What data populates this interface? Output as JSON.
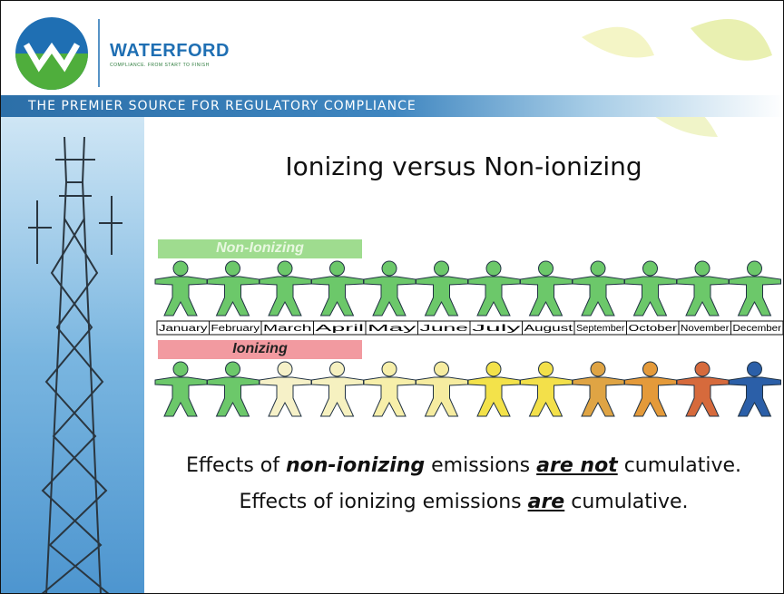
{
  "header": {
    "brand": "WATERFORD",
    "tagline": "COMPLIANCE. FROM START TO FINISH",
    "banner": "THE PREMIER SOURCE FOR REGULATORY COMPLIANCE"
  },
  "title": "Ionizing versus Non-ionizing",
  "non_ionizing_label": "Non-Ionizing",
  "ionizing_label": "Ionizing",
  "months": [
    "January",
    "February",
    "March",
    "April",
    "May",
    "June",
    "July",
    "August",
    "September",
    "October",
    "November",
    "December"
  ],
  "statements": [
    [
      "Effects of ",
      "non-ionizing",
      " emissions ",
      "are not",
      " cumulative."
    ],
    [
      "Effects of ionizing emissions ",
      "are",
      " cumulative."
    ]
  ]
}
